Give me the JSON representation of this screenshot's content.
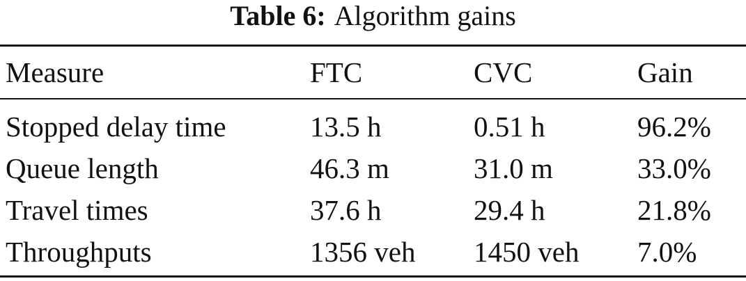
{
  "caption": {
    "label": "Table 6:",
    "title": "Algorithm gains"
  },
  "table": {
    "header": [
      "Measure",
      "FTC",
      "CVC",
      "Gain"
    ],
    "rows": [
      [
        "Stopped delay time",
        "13.5 h",
        "0.51 h",
        "96.2%"
      ],
      [
        "Queue length",
        "46.3 m",
        "31.0 m",
        "33.0%"
      ],
      [
        "Travel times",
        "37.6 h",
        "29.4 h",
        "21.8%"
      ],
      [
        "Throughputs",
        "1356 veh",
        "1450 veh",
        "7.0%"
      ]
    ]
  }
}
